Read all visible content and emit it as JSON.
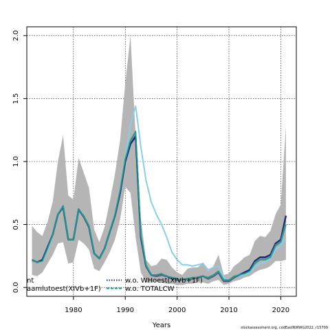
{
  "chart_data": {
    "type": "line",
    "title": "",
    "xlabel": "Years",
    "ylabel": "",
    "xlim": [
      1971,
      2023
    ],
    "ylim": [
      -0.07,
      2.07
    ],
    "grid": true,
    "legend_position": "bottom-left",
    "x_ticks": [
      1980,
      1990,
      2000,
      2010,
      2020
    ],
    "x_tick_labels": [
      "1980",
      "1990",
      "2000",
      "2010",
      "2020"
    ],
    "y_ticks": [
      0.0,
      0.5,
      1.0,
      1.5,
      2.0
    ],
    "y_tick_labels": [
      "0.0",
      "0.5",
      "1.0",
      "1.5",
      "2.0"
    ],
    "years": [
      1972,
      1973,
      1974,
      1975,
      1976,
      1977,
      1978,
      1979,
      1980,
      1981,
      1982,
      1983,
      1984,
      1985,
      1986,
      1987,
      1988,
      1989,
      1990,
      1991,
      1992,
      1993,
      1994,
      1995,
      1996,
      1997,
      1998,
      1999,
      2000,
      2001,
      2002,
      2003,
      2004,
      2005,
      2006,
      2007,
      2008,
      2009,
      2010,
      2011,
      2012,
      2013,
      2014,
      2015,
      2016,
      2017,
      2018,
      2019,
      2020,
      2021
    ],
    "ci_upper": [
      0.49,
      0.44,
      0.41,
      0.52,
      0.68,
      1.0,
      1.21,
      0.73,
      0.7,
      1.03,
      0.91,
      0.79,
      0.46,
      0.36,
      0.48,
      0.68,
      0.9,
      1.17,
      1.62,
      2.0,
      1.2,
      0.55,
      0.22,
      0.17,
      0.18,
      0.23,
      0.22,
      0.16,
      0.12,
      0.1,
      0.15,
      0.16,
      0.16,
      0.2,
      0.13,
      0.17,
      0.26,
      0.1,
      0.11,
      0.17,
      0.2,
      0.24,
      0.26,
      0.37,
      0.41,
      0.4,
      0.45,
      0.58,
      0.66,
      1.28
    ],
    "ci_lower": [
      0.1,
      0.09,
      0.12,
      0.19,
      0.26,
      0.35,
      0.36,
      0.19,
      0.2,
      0.38,
      0.35,
      0.3,
      0.15,
      0.13,
      0.2,
      0.28,
      0.38,
      0.54,
      0.8,
      0.75,
      0.4,
      0.12,
      0.04,
      0.04,
      0.05,
      0.04,
      0.03,
      0.03,
      0.02,
      0.02,
      0.03,
      0.03,
      0.04,
      0.04,
      0.03,
      0.05,
      0.06,
      0.02,
      0.03,
      0.05,
      0.06,
      0.08,
      0.09,
      0.12,
      0.14,
      0.15,
      0.17,
      0.21,
      0.21,
      0.22
    ],
    "series": [
      {
        "name": "w.o. WHoest(XIVb+1F)",
        "color": "#102a7a",
        "values": [
          0.22,
          0.2,
          0.22,
          0.32,
          0.42,
          0.58,
          0.64,
          0.38,
          0.38,
          0.62,
          0.56,
          0.48,
          0.27,
          0.23,
          0.31,
          0.44,
          0.57,
          0.75,
          1.0,
          1.14,
          1.2,
          0.4,
          0.17,
          0.1,
          0.09,
          0.1,
          0.09,
          0.07,
          0.06,
          0.06,
          0.07,
          0.07,
          0.08,
          0.09,
          0.07,
          0.09,
          0.12,
          0.05,
          0.05,
          0.08,
          0.1,
          0.12,
          0.14,
          0.21,
          0.24,
          0.24,
          0.26,
          0.35,
          0.38,
          0.57
        ]
      },
      {
        "name": "w.o. TOTALCW",
        "color": "#1e9c90",
        "values": [
          0.22,
          0.2,
          0.21,
          0.31,
          0.42,
          0.58,
          0.65,
          0.38,
          0.38,
          0.62,
          0.57,
          0.49,
          0.27,
          0.23,
          0.31,
          0.44,
          0.58,
          0.77,
          1.02,
          1.17,
          1.24,
          0.42,
          0.18,
          0.1,
          0.1,
          0.11,
          0.09,
          0.08,
          0.07,
          0.06,
          0.07,
          0.08,
          0.08,
          0.09,
          0.08,
          0.1,
          0.13,
          0.06,
          0.06,
          0.09,
          0.1,
          0.11,
          0.13,
          0.19,
          0.22,
          0.22,
          0.24,
          0.33,
          0.36,
          0.5
        ]
      },
      {
        "name": "",
        "color": "#87ceeb",
        "values": [
          0.22,
          0.2,
          0.21,
          0.3,
          0.42,
          0.58,
          0.65,
          0.38,
          0.38,
          0.62,
          0.57,
          0.49,
          0.27,
          0.23,
          0.31,
          0.44,
          0.57,
          0.76,
          1.02,
          1.3,
          1.44,
          1.12,
          0.85,
          0.68,
          0.58,
          0.5,
          0.4,
          0.28,
          0.22,
          0.18,
          0.18,
          0.17,
          0.18,
          0.19,
          0.14,
          0.16,
          0.17,
          0.08,
          0.06,
          0.08,
          0.09,
          0.1,
          0.12,
          0.16,
          0.19,
          0.2,
          0.23,
          0.3,
          0.33,
          0.4
        ]
      },
      {
        "name": "",
        "color": "#7a7a7a",
        "values": [
          0.21,
          0.2,
          0.21,
          0.31,
          0.42,
          0.58,
          0.64,
          0.38,
          0.38,
          0.62,
          0.56,
          0.48,
          0.27,
          0.23,
          0.31,
          0.44,
          0.57,
          0.76,
          1.01,
          1.16,
          1.22,
          0.41,
          0.17,
          0.1,
          0.09,
          0.1,
          0.09,
          0.07,
          0.06,
          0.06,
          0.07,
          0.07,
          0.08,
          0.09,
          0.07,
          0.09,
          0.12,
          0.05,
          0.05,
          0.08,
          0.1,
          0.11,
          0.13,
          0.2,
          0.23,
          0.23,
          0.25,
          0.34,
          0.37,
          0.53
        ]
      }
    ],
    "legend": {
      "left_col": [
        "nt",
        "aamlutoest(XIVb+1F)"
      ],
      "right_col": [
        {
          "label": "w.o. WHoest(XIVb+1F)",
          "color": "#102a7a",
          "style": "dotted"
        },
        {
          "label": "w.o. TOTALCW",
          "color": "#1e9c90",
          "style": "dashed"
        }
      ]
    },
    "band_color": "#b5b5b5",
    "credit": "stockassessment.org, codEastNWWG2022, r15709"
  }
}
